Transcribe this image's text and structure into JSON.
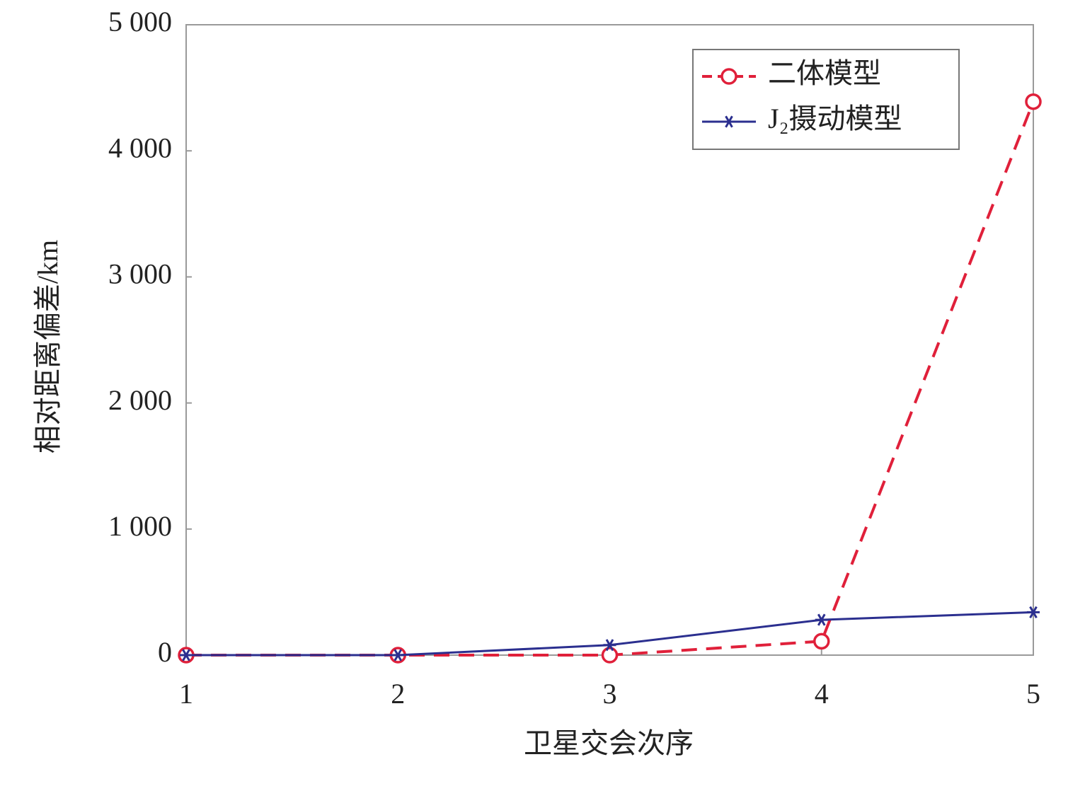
{
  "chart_data": {
    "type": "line",
    "x_label": "卫星交会次序",
    "y_label": "相对距离偏差/km",
    "x": [
      1,
      2,
      3,
      4,
      5
    ],
    "series": [
      {
        "name": "二体模型",
        "color": "#e0203a",
        "values": [
          0,
          0,
          0,
          110,
          4390
        ]
      },
      {
        "name": "J₂摄动模型",
        "color": "#2b2f8f",
        "values": [
          0,
          0,
          80,
          280,
          340
        ]
      }
    ],
    "xlim": [
      1,
      5
    ],
    "xticks": [
      1,
      2,
      3,
      4,
      5
    ],
    "ylim": [
      0,
      5000
    ],
    "yticks": [
      0,
      {
        "value": 1000,
        "label": "1 000"
      },
      {
        "value": 2000,
        "label": "2 000"
      },
      {
        "value": 3000,
        "label": "3 000"
      },
      {
        "value": 4000,
        "label": "4 000"
      },
      {
        "value": 5000,
        "label": "5 000"
      }
    ],
    "grid": false,
    "legend": "top-right"
  }
}
